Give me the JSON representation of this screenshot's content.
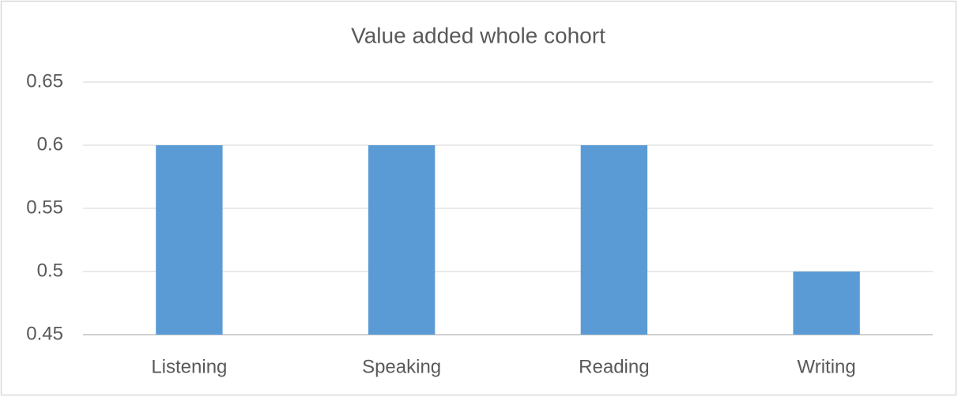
{
  "chart_data": {
    "type": "bar",
    "title": "Value added whole cohort",
    "categories": [
      "Listening",
      "Speaking",
      "Reading",
      "Writing"
    ],
    "values": [
      0.6,
      0.6,
      0.6,
      0.5
    ],
    "color": "#5b9bd5",
    "ylim": [
      0.45,
      0.65
    ],
    "yticks": [
      0.45,
      0.5,
      0.55,
      0.6,
      0.65
    ],
    "grid": true
  }
}
